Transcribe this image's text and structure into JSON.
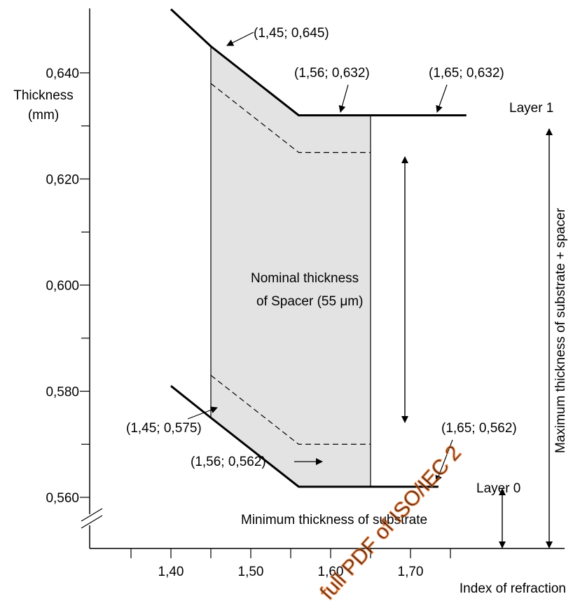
{
  "chart_data": {
    "type": "line",
    "xlabel": "Index of refraction",
    "ylabel": "Thickness\n(mm)",
    "x_ticks": [
      "1,40",
      "1,50",
      "1,60",
      "1,70"
    ],
    "x_tick_values": [
      1.4,
      1.5,
      1.6,
      1.7
    ],
    "y_ticks": [
      "0,640",
      "0,620",
      "0,600",
      "0,580",
      "0,560"
    ],
    "y_tick_values": [
      0.64,
      0.62,
      0.6,
      0.58,
      0.56
    ],
    "y_minor_tick_values": [
      0.63,
      0.61,
      0.59,
      0.57
    ],
    "xlim": [
      1.31,
      1.78
    ],
    "ylim": [
      0.55,
      0.653
    ],
    "axis_break": true,
    "grid": false,
    "series": [
      {
        "name": "Layer 1",
        "style": "solid-bold",
        "x": [
          1.4,
          1.45,
          1.56,
          1.65,
          1.77
        ],
        "y": [
          0.652,
          0.645,
          0.632,
          0.632,
          0.632
        ]
      },
      {
        "name": "Layer 0",
        "style": "solid-bold",
        "x": [
          1.4,
          1.45,
          1.56,
          1.65,
          1.735
        ],
        "y": [
          0.581,
          0.575,
          0.562,
          0.562,
          0.562
        ]
      },
      {
        "name": "",
        "style": "dashed",
        "x": [
          1.45,
          1.56,
          1.65
        ],
        "y": [
          0.638,
          0.625,
          0.625
        ]
      },
      {
        "name": "",
        "style": "dashed",
        "x": [
          1.45,
          1.56,
          1.65
        ],
        "y": [
          0.583,
          0.57,
          0.57
        ]
      }
    ],
    "shaded_region": {
      "x": [
        1.45,
        1.56,
        1.65,
        1.65,
        1.56,
        1.45
      ],
      "y": [
        0.645,
        0.632,
        0.632,
        0.562,
        0.562,
        0.575
      ],
      "color": "#e3e3e3"
    },
    "points": [
      {
        "label": "(1,45; 0,645)",
        "x": 1.45,
        "y": 0.645
      },
      {
        "label": "(1,56; 0,632)",
        "x": 1.56,
        "y": 0.632
      },
      {
        "label": "(1,65; 0,632)",
        "x": 1.65,
        "y": 0.632
      },
      {
        "label": "(1,45; 0,575)",
        "x": 1.45,
        "y": 0.575
      },
      {
        "label": "(1,56; 0,562)",
        "x": 1.56,
        "y": 0.562
      },
      {
        "label": "(1,65; 0,562)",
        "x": 1.65,
        "y": 0.562
      }
    ],
    "series_labels": {
      "layer1": "Layer 1",
      "layer0": "Layer 0"
    },
    "annotations": {
      "spacer_line1": "Nominal thickness",
      "spacer_line2_prefix": "of Spacer (55 ",
      "spacer_mu": "μ",
      "spacer_line2_suffix": "m)",
      "min_substrate": "Minimum thickness of substrate",
      "max_substrate_spacer": "Maximum thickness of substrate + spacer"
    },
    "watermark": "full PDF of ISO/IEC 2",
    "watermark_color": "#f06b1d"
  }
}
